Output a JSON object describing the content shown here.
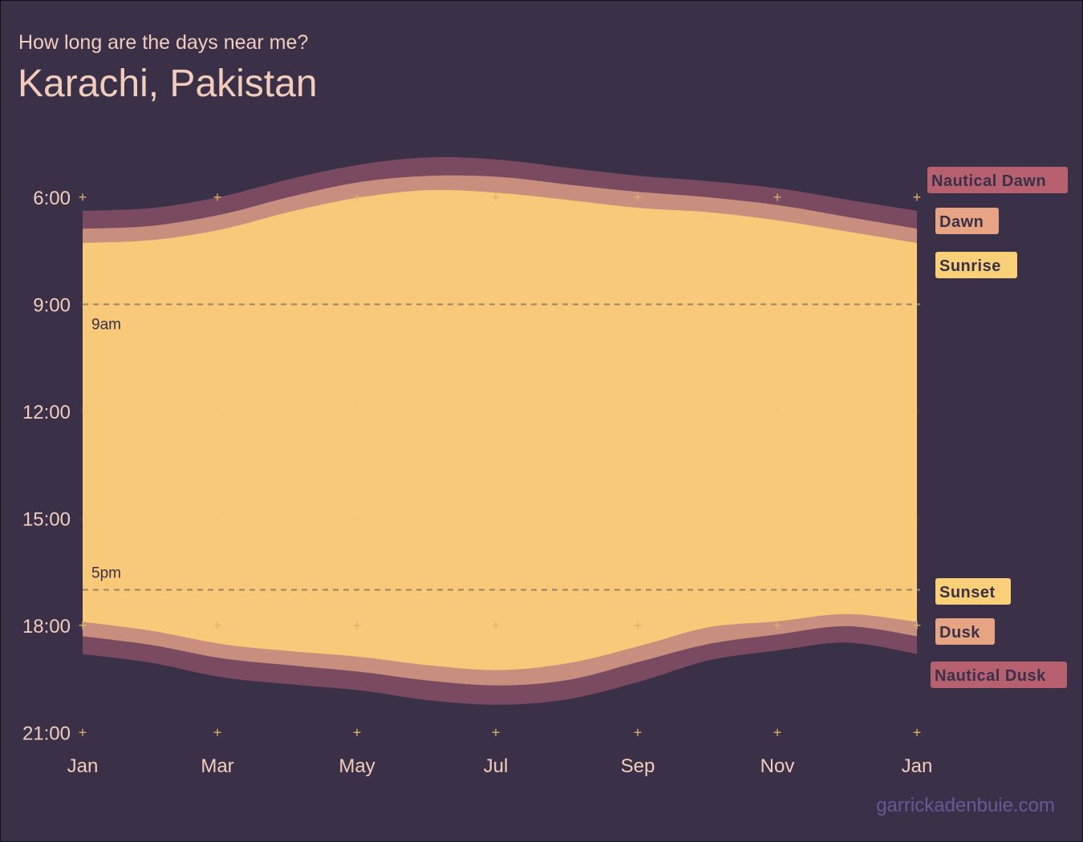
{
  "subtitle": "How long are the days near me?",
  "title": "Karachi, Pakistan",
  "caption": "garrickadenbuie.com",
  "colors": {
    "background": "#3a3149",
    "text": "#f3cdbb",
    "day": "#f9c97a",
    "twilight_civil": "#c88e7e",
    "twilight_nautical": "#7a4a60",
    "label_sunrise": "#f9cf78",
    "label_dawn": "#e7a482",
    "label_nautical": "#b7606f",
    "label_text": "#3a3149",
    "tick_mark": "#d9b46a",
    "reference_line": "#9a8468",
    "caption": "#655a94"
  },
  "chart_data": {
    "type": "area",
    "x_unit": "month",
    "x_ticks": [
      "Jan",
      "Mar",
      "May",
      "Jul",
      "Sep",
      "Nov",
      "Jan"
    ],
    "y_unit": "hour of day",
    "y_reversed": true,
    "ylim": [
      5,
      21
    ],
    "y_ticks": [
      {
        "value": 6,
        "label": "6:00"
      },
      {
        "value": 9,
        "label": "9:00"
      },
      {
        "value": 12,
        "label": "12:00"
      },
      {
        "value": 15,
        "label": "15:00"
      },
      {
        "value": 18,
        "label": "18:00"
      },
      {
        "value": 21,
        "label": "21:00"
      }
    ],
    "x": [
      "Jan 1",
      "Feb 1",
      "Mar 1",
      "Apr 1",
      "May 1",
      "Jun 1",
      "Jul 1",
      "Aug 1",
      "Sep 1",
      "Oct 1",
      "Nov 1",
      "Dec 1",
      "Jan 1"
    ],
    "series": [
      {
        "name": "Nautical Dawn",
        "values": [
          6.38,
          6.3,
          5.98,
          5.48,
          5.08,
          4.88,
          4.95,
          5.18,
          5.4,
          5.55,
          5.75,
          6.07,
          6.38
        ]
      },
      {
        "name": "Dawn",
        "values": [
          6.88,
          6.8,
          6.48,
          5.98,
          5.57,
          5.4,
          5.43,
          5.65,
          5.85,
          6.0,
          6.22,
          6.55,
          6.88
        ]
      },
      {
        "name": "Sunrise",
        "values": [
          7.28,
          7.2,
          6.9,
          6.4,
          6.0,
          5.8,
          5.88,
          6.08,
          6.3,
          6.42,
          6.65,
          6.96,
          7.28
        ]
      },
      {
        "name": "Sunset",
        "values": [
          17.9,
          18.15,
          18.52,
          18.72,
          18.88,
          19.12,
          19.25,
          19.05,
          18.58,
          18.05,
          17.88,
          17.68,
          17.9
        ]
      },
      {
        "name": "Dusk",
        "values": [
          18.3,
          18.55,
          18.92,
          19.12,
          19.3,
          19.55,
          19.68,
          19.52,
          19.02,
          18.52,
          18.25,
          18.02,
          18.3
        ]
      },
      {
        "name": "Nautical Dusk",
        "values": [
          18.8,
          19.05,
          19.45,
          19.65,
          19.82,
          20.1,
          20.22,
          20.06,
          19.58,
          18.98,
          18.7,
          18.48,
          18.8
        ]
      }
    ],
    "reference_lines": [
      {
        "value": 9,
        "label": "9am"
      },
      {
        "value": 17,
        "label": "5pm"
      }
    ]
  }
}
